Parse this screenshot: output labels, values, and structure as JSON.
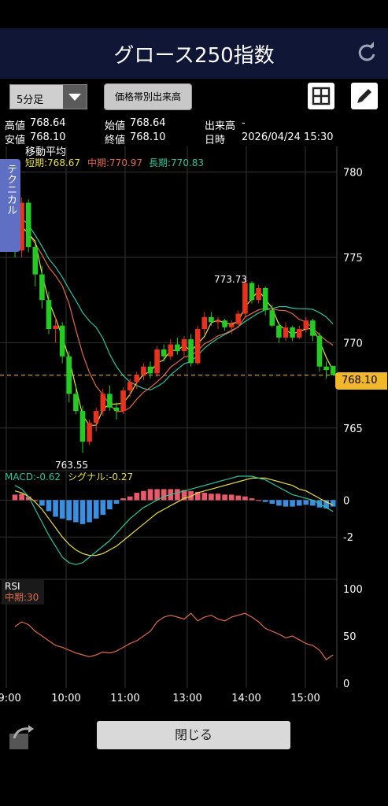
{
  "header": {
    "title": "グロース250指数"
  },
  "toolbar": {
    "interval_select": "5分足",
    "price_band_button": "価格帯別出来高"
  },
  "info": {
    "high_label": "高値",
    "high_value": "768.64",
    "open_label": "始値",
    "open_value": "768.64",
    "volume_label": "出来高",
    "volume_value": "-",
    "low_label": "安値",
    "low_value": "768.10",
    "close_label": "終値",
    "close_value": "768.10",
    "datetime_label": "日時",
    "datetime_value": "2026/04/24 15:30"
  },
  "technical_tab": "テクニカル",
  "legend": {
    "ma_title": "移動平均",
    "short": "短期:768.67",
    "mid": "中期:770.97",
    "long": "長期:770.83",
    "macd": "MACD:-0.62",
    "signal": "シグナル:-0.27",
    "rsi": "RSI",
    "rsi_mid": "中期:30"
  },
  "price_tag": "768.10",
  "annotations": {
    "high": "773.73",
    "low": "763.55"
  },
  "close_button": "閉じる",
  "colors": {
    "up": "#e8321e",
    "down": "#22cc22",
    "short_ma": "#e8e040",
    "mid_ma": "#e06a4a",
    "long_ma": "#2ec4a0",
    "macd_neg": "#3a8fe0",
    "macd_pos": "#e85a6a",
    "accent": "#f3b72a"
  },
  "chart_data": {
    "type": "candlestick",
    "x_ticks": [
      "09:00",
      "10:00",
      "11:00",
      "13:00",
      "14:00",
      "15:00"
    ],
    "price_ticks": [
      "780",
      "775",
      "770",
      "765"
    ],
    "ylim": [
      762.5,
      781.5
    ],
    "last_close": 768.1,
    "ohlc": [
      [
        776.0,
        776.5,
        775.0,
        775.4
      ],
      [
        775.4,
        778.5,
        775.0,
        778.2
      ],
      [
        778.2,
        778.4,
        775.3,
        775.6
      ],
      [
        775.6,
        776.0,
        773.3,
        774.0
      ],
      [
        774.0,
        774.5,
        772.0,
        772.5
      ],
      [
        772.5,
        773.0,
        770.5,
        770.8
      ],
      [
        770.8,
        771.5,
        770.0,
        771.0
      ],
      [
        771.0,
        771.2,
        768.8,
        769.2
      ],
      [
        769.2,
        769.5,
        766.5,
        767.0
      ],
      [
        767.0,
        767.5,
        765.8,
        766.0
      ],
      [
        766.0,
        766.3,
        763.55,
        764.2
      ],
      [
        764.2,
        765.5,
        764.0,
        765.3
      ],
      [
        765.3,
        766.2,
        764.8,
        766.0
      ],
      [
        766.0,
        767.3,
        765.7,
        767.0
      ],
      [
        767.0,
        767.5,
        766.0,
        766.2
      ],
      [
        766.2,
        766.5,
        765.5,
        766.0
      ],
      [
        766.0,
        767.4,
        765.8,
        767.2
      ],
      [
        767.2,
        767.9,
        766.8,
        767.7
      ],
      [
        767.7,
        768.3,
        767.3,
        768.1
      ],
      [
        768.1,
        768.8,
        767.8,
        768.6
      ],
      [
        768.6,
        768.9,
        767.9,
        768.2
      ],
      [
        768.2,
        769.8,
        768.0,
        769.6
      ],
      [
        769.6,
        769.9,
        768.9,
        769.2
      ],
      [
        769.2,
        770.2,
        769.0,
        769.9
      ],
      [
        769.9,
        770.3,
        769.3,
        769.5
      ],
      [
        769.5,
        770.4,
        769.2,
        770.2
      ],
      [
        770.2,
        770.5,
        768.6,
        768.8
      ],
      [
        768.8,
        771.0,
        768.7,
        770.8
      ],
      [
        770.8,
        771.8,
        770.5,
        771.5
      ],
      [
        771.5,
        771.8,
        771.0,
        771.2
      ],
      [
        771.2,
        771.5,
        770.8,
        771.3
      ],
      [
        771.3,
        771.4,
        770.7,
        770.9
      ],
      [
        770.9,
        771.3,
        770.5,
        771.1
      ],
      [
        771.1,
        771.9,
        771.0,
        771.7
      ],
      [
        771.7,
        773.73,
        771.5,
        773.5
      ],
      [
        773.5,
        773.6,
        772.3,
        772.5
      ],
      [
        772.5,
        773.4,
        772.3,
        773.2
      ],
      [
        773.2,
        773.3,
        771.6,
        771.9
      ],
      [
        771.9,
        772.2,
        770.9,
        771.0
      ],
      [
        771.0,
        771.2,
        770.0,
        770.3
      ],
      [
        770.3,
        771.2,
        770.1,
        770.9
      ],
      [
        770.9,
        771.0,
        770.1,
        770.3
      ],
      [
        770.3,
        771.0,
        770.2,
        770.8
      ],
      [
        770.8,
        771.5,
        770.6,
        771.3
      ],
      [
        771.3,
        771.4,
        770.1,
        770.4
      ],
      [
        770.4,
        770.6,
        768.3,
        768.6
      ],
      [
        768.6,
        768.9,
        767.9,
        768.4
      ],
      [
        768.64,
        768.64,
        768.1,
        768.1
      ]
    ],
    "macd_ticks": [
      "0",
      "-2"
    ],
    "macd_ylim": [
      -4.3,
      1.6
    ],
    "macd_hist": [
      0.3,
      0.35,
      0.2,
      0,
      -0.3,
      -0.6,
      -0.9,
      -1.0,
      -1.1,
      -1.2,
      -1.3,
      -1.2,
      -1.0,
      -0.8,
      -0.5,
      -0.2,
      0.1,
      0.2,
      0.4,
      0.5,
      0.6,
      0.6,
      0.6,
      0.6,
      0.6,
      0.55,
      0.5,
      0.45,
      0.4,
      0.35,
      0.35,
      0.3,
      0.3,
      0.25,
      0.2,
      0.1,
      0,
      -0.1,
      -0.2,
      -0.3,
      -0.35,
      -0.35,
      -0.3,
      -0.25,
      -0.3,
      -0.4,
      -0.45,
      -0.35
    ],
    "macd_line": [
      0.8,
      0.6,
      0.2,
      -0.5,
      -1.2,
      -1.9,
      -2.5,
      -3.1,
      -3.4,
      -3.5,
      -3.4,
      -3.1,
      -2.8,
      -2.5,
      -2.2,
      -1.8,
      -1.4,
      -1.0,
      -0.7,
      -0.4,
      -0.2,
      0,
      0.2,
      0.3,
      0.4,
      0.5,
      0.6,
      0.7,
      0.8,
      0.9,
      1.0,
      1.1,
      1.2,
      1.3,
      1.3,
      1.3,
      1.2,
      1.1,
      0.9,
      0.7,
      0.5,
      0.3,
      0.2,
      0.1,
      0,
      -0.2,
      -0.4,
      -0.62
    ],
    "signal_line": [
      0.5,
      0.4,
      0.2,
      -0.1,
      -0.5,
      -1.0,
      -1.5,
      -2.0,
      -2.4,
      -2.7,
      -2.9,
      -3.0,
      -3.0,
      -2.9,
      -2.7,
      -2.5,
      -2.2,
      -1.9,
      -1.6,
      -1.3,
      -1.0,
      -0.7,
      -0.5,
      -0.3,
      -0.1,
      0.1,
      0.2,
      0.4,
      0.5,
      0.6,
      0.7,
      0.8,
      0.9,
      1.0,
      1.1,
      1.2,
      1.2,
      1.2,
      1.1,
      1.0,
      0.9,
      0.8,
      0.6,
      0.5,
      0.3,
      0.1,
      -0.1,
      -0.27
    ],
    "rsi_ticks": [
      "100",
      "50",
      "0"
    ],
    "rsi": [
      60,
      65,
      62,
      55,
      50,
      45,
      40,
      38,
      35,
      32,
      30,
      28,
      30,
      33,
      32,
      34,
      38,
      42,
      45,
      50,
      55,
      65,
      70,
      72,
      70,
      68,
      74,
      66,
      70,
      72,
      68,
      66,
      70,
      72,
      74,
      70,
      65,
      58,
      55,
      52,
      48,
      50,
      46,
      42,
      40,
      35,
      25,
      30
    ]
  }
}
